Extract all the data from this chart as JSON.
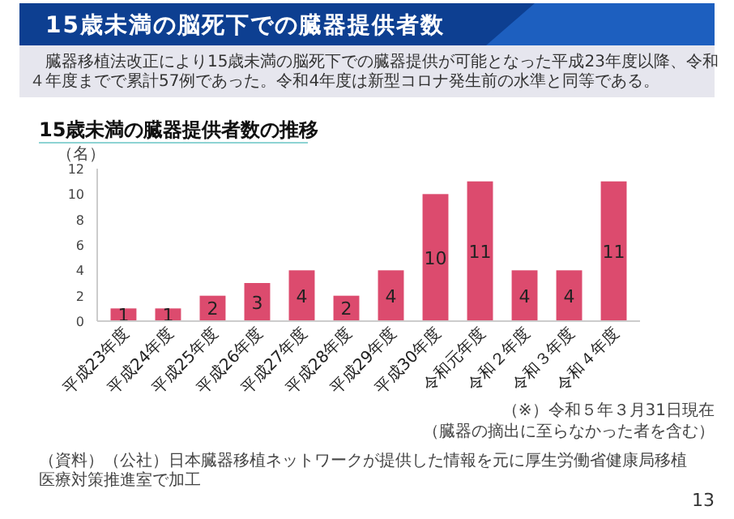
{
  "chart_data": {
    "type": "bar",
    "title": "15歳未満の脳死下での臓器提供者数",
    "subtitle": "臓器移植法改正により15歳未満の脳死下での臓器提供が可能となった平成23年度以降、令和４年度までで累計57例であった。令和4年度は新型コロナ発生前の水準と同等である。",
    "ylabel": "（名）",
    "categories": [
      "平成23年度",
      "平成24年度",
      "平成25年度",
      "平成26年度",
      "平成27年度",
      "平成28年度",
      "平成29年度",
      "平成30年度",
      "令和元年度",
      "令和２年度",
      "令和３年度",
      "令和４年度"
    ],
    "values": [
      1,
      1,
      2,
      3,
      4,
      2,
      4,
      10,
      11,
      4,
      4,
      11
    ],
    "color": "#dc4b6e",
    "ylim": [
      0,
      12
    ],
    "yticks": [
      0,
      2,
      4,
      6,
      8,
      10,
      12
    ],
    "grid": false,
    "data_labels": true,
    "annotations": [
      "15歳未満の臓器提供者数の推移",
      "（※）令和５年３月31日現在",
      "（臓器の摘出に至らなかった者を含む）",
      "（資料）（公社）日本臓器移植ネットワークが提供した情報を元に厚生労働省健康局移植医療対策推進室で加工",
      "13"
    ]
  }
}
